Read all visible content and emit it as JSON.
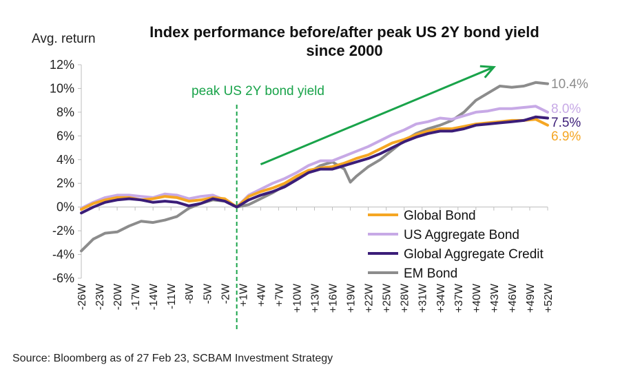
{
  "chart_data": {
    "type": "line",
    "title_lines": [
      "Index performance before/after peak US 2Y bond yield",
      "since 2000"
    ],
    "ylabel": "Avg. return",
    "source": "Source: Bloomberg as of 27 Feb 23, SCBAM Investment Strategy",
    "annotation": "peak US 2Y bond yield",
    "ylim": [
      -6,
      12
    ],
    "y_ticks": [
      "-6%",
      "-4%",
      "-2%",
      "0%",
      "2%",
      "4%",
      "6%",
      "8%",
      "10%",
      "12%"
    ],
    "y_tick_values": [
      -6,
      -4,
      -2,
      0,
      2,
      4,
      6,
      8,
      10,
      12
    ],
    "x_range": [
      -26,
      52
    ],
    "x_ticks": [
      {
        "v": -26,
        "label": "-26W"
      },
      {
        "v": -23,
        "label": "-23W"
      },
      {
        "v": -20,
        "label": "-20W"
      },
      {
        "v": -17,
        "label": "-17W"
      },
      {
        "v": -14,
        "label": "-14W"
      },
      {
        "v": -11,
        "label": "-11W"
      },
      {
        "v": -8,
        "label": "-8W"
      },
      {
        "v": -5,
        "label": "-5W"
      },
      {
        "v": -2,
        "label": "-2W"
      },
      {
        "v": 1,
        "label": "+1W"
      },
      {
        "v": 4,
        "label": "+4W"
      },
      {
        "v": 7,
        "label": "+7W"
      },
      {
        "v": 10,
        "label": "+10W"
      },
      {
        "v": 13,
        "label": "+13W"
      },
      {
        "v": 16,
        "label": "+16W"
      },
      {
        "v": 19,
        "label": "+19W"
      },
      {
        "v": 22,
        "label": "+22W"
      },
      {
        "v": 25,
        "label": "+25W"
      },
      {
        "v": 28,
        "label": "+28W"
      },
      {
        "v": 31,
        "label": "+31W"
      },
      {
        "v": 34,
        "label": "+34W"
      },
      {
        "v": 37,
        "label": "+37W"
      },
      {
        "v": 40,
        "label": "+40W"
      },
      {
        "v": 43,
        "label": "+43W"
      },
      {
        "v": 46,
        "label": "+46W"
      },
      {
        "v": 49,
        "label": "+49W"
      },
      {
        "v": 52,
        "label": "+52W"
      }
    ],
    "peak_x": 0,
    "trend_arrow": {
      "from": [
        4,
        3.6
      ],
      "to": [
        43,
        11.8
      ],
      "color": "#19a34a"
    },
    "legend": {
      "position": "bottom-right"
    },
    "series": [
      {
        "name": "Global Bond",
        "color": "#f5a623",
        "end_label": "6.9%",
        "points": [
          [
            -26,
            -0.2
          ],
          [
            -24,
            0.3
          ],
          [
            -22,
            0.6
          ],
          [
            -20,
            0.8
          ],
          [
            -18,
            0.8
          ],
          [
            -16,
            0.6
          ],
          [
            -14,
            0.7
          ],
          [
            -12,
            0.9
          ],
          [
            -10,
            0.8
          ],
          [
            -8,
            0.5
          ],
          [
            -6,
            0.6
          ],
          [
            -4,
            0.8
          ],
          [
            -2,
            0.7
          ],
          [
            0,
            0
          ],
          [
            2,
            0.9
          ],
          [
            4,
            1.3
          ],
          [
            6,
            1.6
          ],
          [
            8,
            2.0
          ],
          [
            10,
            2.6
          ],
          [
            12,
            3.1
          ],
          [
            14,
            3.3
          ],
          [
            16,
            3.4
          ],
          [
            18,
            3.7
          ],
          [
            20,
            4.1
          ],
          [
            22,
            4.4
          ],
          [
            24,
            4.9
          ],
          [
            26,
            5.4
          ],
          [
            28,
            5.7
          ],
          [
            30,
            6.1
          ],
          [
            32,
            6.4
          ],
          [
            34,
            6.6
          ],
          [
            36,
            6.6
          ],
          [
            38,
            6.8
          ],
          [
            40,
            7.0
          ],
          [
            42,
            7.1
          ],
          [
            44,
            7.2
          ],
          [
            46,
            7.3
          ],
          [
            48,
            7.3
          ],
          [
            50,
            7.4
          ],
          [
            52,
            6.9
          ]
        ]
      },
      {
        "name": "US Aggregate Bond",
        "color": "#c7a9e6",
        "end_label": "8.0%",
        "points": [
          [
            -26,
            -0.1
          ],
          [
            -24,
            0.4
          ],
          [
            -22,
            0.8
          ],
          [
            -20,
            1.0
          ],
          [
            -18,
            1.0
          ],
          [
            -16,
            0.9
          ],
          [
            -14,
            0.8
          ],
          [
            -12,
            1.1
          ],
          [
            -10,
            1.0
          ],
          [
            -8,
            0.7
          ],
          [
            -6,
            0.9
          ],
          [
            -4,
            1.0
          ],
          [
            -2,
            0.6
          ],
          [
            0,
            0
          ],
          [
            2,
            1.0
          ],
          [
            4,
            1.5
          ],
          [
            6,
            2.0
          ],
          [
            8,
            2.4
          ],
          [
            10,
            2.9
          ],
          [
            12,
            3.5
          ],
          [
            14,
            3.9
          ],
          [
            16,
            3.9
          ],
          [
            18,
            4.3
          ],
          [
            20,
            4.7
          ],
          [
            22,
            5.1
          ],
          [
            24,
            5.6
          ],
          [
            26,
            6.1
          ],
          [
            28,
            6.5
          ],
          [
            30,
            7.0
          ],
          [
            32,
            7.2
          ],
          [
            34,
            7.5
          ],
          [
            36,
            7.4
          ],
          [
            38,
            7.7
          ],
          [
            40,
            8.0
          ],
          [
            42,
            8.1
          ],
          [
            44,
            8.3
          ],
          [
            46,
            8.3
          ],
          [
            48,
            8.4
          ],
          [
            50,
            8.5
          ],
          [
            52,
            8.0
          ]
        ]
      },
      {
        "name": "Global Aggregate Credit",
        "color": "#3b1d78",
        "end_label": "7.5%",
        "points": [
          [
            -26,
            -0.5
          ],
          [
            -24,
            0.0
          ],
          [
            -22,
            0.4
          ],
          [
            -20,
            0.6
          ],
          [
            -18,
            0.7
          ],
          [
            -16,
            0.6
          ],
          [
            -14,
            0.4
          ],
          [
            -12,
            0.5
          ],
          [
            -10,
            0.4
          ],
          [
            -8,
            0.1
          ],
          [
            -6,
            0.3
          ],
          [
            -4,
            0.7
          ],
          [
            -2,
            0.5
          ],
          [
            0,
            0
          ],
          [
            2,
            0.6
          ],
          [
            4,
            1.0
          ],
          [
            6,
            1.3
          ],
          [
            8,
            1.7
          ],
          [
            10,
            2.3
          ],
          [
            12,
            2.9
          ],
          [
            14,
            3.2
          ],
          [
            16,
            3.2
          ],
          [
            18,
            3.5
          ],
          [
            20,
            3.8
          ],
          [
            22,
            4.1
          ],
          [
            24,
            4.5
          ],
          [
            26,
            5.0
          ],
          [
            28,
            5.5
          ],
          [
            30,
            5.9
          ],
          [
            32,
            6.2
          ],
          [
            34,
            6.4
          ],
          [
            36,
            6.4
          ],
          [
            38,
            6.6
          ],
          [
            40,
            6.9
          ],
          [
            42,
            7.0
          ],
          [
            44,
            7.1
          ],
          [
            46,
            7.2
          ],
          [
            48,
            7.3
          ],
          [
            50,
            7.6
          ],
          [
            52,
            7.5
          ]
        ]
      },
      {
        "name": "EM Bond",
        "color": "#8c8c8c",
        "end_label": "10.4%",
        "points": [
          [
            -26,
            -3.7
          ],
          [
            -24,
            -2.7
          ],
          [
            -22,
            -2.2
          ],
          [
            -20,
            -2.1
          ],
          [
            -18,
            -1.6
          ],
          [
            -16,
            -1.2
          ],
          [
            -14,
            -1.3
          ],
          [
            -12,
            -1.1
          ],
          [
            -10,
            -0.8
          ],
          [
            -8,
            -0.1
          ],
          [
            -6,
            0.3
          ],
          [
            -4,
            0.6
          ],
          [
            -2,
            0.5
          ],
          [
            0,
            0
          ],
          [
            2,
            0.2
          ],
          [
            4,
            0.7
          ],
          [
            6,
            1.2
          ],
          [
            8,
            1.8
          ],
          [
            10,
            2.4
          ],
          [
            12,
            2.9
          ],
          [
            14,
            3.5
          ],
          [
            16,
            3.8
          ],
          [
            18,
            3.2
          ],
          [
            19,
            2.1
          ],
          [
            20,
            2.6
          ],
          [
            22,
            3.4
          ],
          [
            24,
            4.0
          ],
          [
            26,
            4.8
          ],
          [
            28,
            5.6
          ],
          [
            30,
            6.2
          ],
          [
            32,
            6.6
          ],
          [
            34,
            6.9
          ],
          [
            36,
            7.3
          ],
          [
            38,
            8.0
          ],
          [
            40,
            9.0
          ],
          [
            42,
            9.6
          ],
          [
            44,
            10.2
          ],
          [
            46,
            10.1
          ],
          [
            48,
            10.2
          ],
          [
            50,
            10.5
          ],
          [
            52,
            10.4
          ]
        ]
      }
    ]
  }
}
